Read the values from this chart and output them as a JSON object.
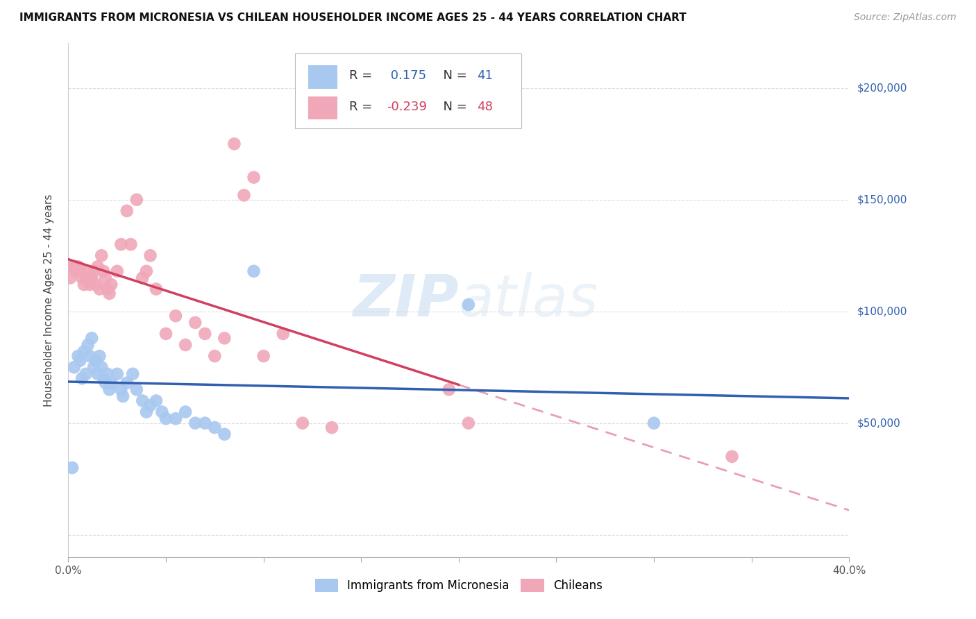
{
  "title": "IMMIGRANTS FROM MICRONESIA VS CHILEAN HOUSEHOLDER INCOME AGES 25 - 44 YEARS CORRELATION CHART",
  "source": "Source: ZipAtlas.com",
  "ylabel": "Householder Income Ages 25 - 44 years",
  "xlim": [
    0.0,
    0.4
  ],
  "ylim": [
    -10000,
    220000
  ],
  "ytick_vals": [
    0,
    50000,
    100000,
    150000,
    200000
  ],
  "ytick_labels": [
    "",
    "$50,000",
    "$100,000",
    "$150,000",
    "$200,000"
  ],
  "xtick_vals": [
    0.0,
    0.05,
    0.1,
    0.15,
    0.2,
    0.25,
    0.3,
    0.35,
    0.4
  ],
  "xtick_labels": [
    "0.0%",
    "",
    "",
    "",
    "",
    "",
    "",
    "",
    "40.0%"
  ],
  "blue_R": 0.175,
  "blue_N": 41,
  "pink_R": -0.239,
  "pink_N": 48,
  "blue_color": "#A8C8F0",
  "pink_color": "#F0A8B8",
  "blue_line_color": "#3060B0",
  "pink_line_color": "#D04060",
  "pink_dash_color": "#E8A0B0",
  "watermark_zip": "ZIP",
  "watermark_atlas": "atlas",
  "background_color": "#FFFFFF",
  "grid_color": "#DDDDDD",
  "blue_scatter_x": [
    0.002,
    0.003,
    0.005,
    0.006,
    0.007,
    0.008,
    0.009,
    0.01,
    0.011,
    0.012,
    0.013,
    0.014,
    0.015,
    0.016,
    0.017,
    0.018,
    0.019,
    0.02,
    0.021,
    0.022,
    0.025,
    0.027,
    0.028,
    0.03,
    0.033,
    0.035,
    0.038,
    0.04,
    0.042,
    0.045,
    0.048,
    0.05,
    0.055,
    0.06,
    0.065,
    0.07,
    0.075,
    0.08,
    0.095,
    0.205,
    0.3
  ],
  "blue_scatter_y": [
    30000,
    75000,
    80000,
    78000,
    70000,
    82000,
    72000,
    85000,
    80000,
    88000,
    75000,
    78000,
    72000,
    80000,
    75000,
    70000,
    68000,
    72000,
    65000,
    68000,
    72000,
    65000,
    62000,
    68000,
    72000,
    65000,
    60000,
    55000,
    58000,
    60000,
    55000,
    52000,
    52000,
    55000,
    50000,
    50000,
    48000,
    45000,
    118000,
    103000,
    50000
  ],
  "pink_scatter_x": [
    0.001,
    0.002,
    0.003,
    0.004,
    0.005,
    0.006,
    0.007,
    0.008,
    0.009,
    0.01,
    0.011,
    0.012,
    0.013,
    0.014,
    0.015,
    0.016,
    0.017,
    0.018,
    0.019,
    0.02,
    0.021,
    0.022,
    0.025,
    0.027,
    0.03,
    0.032,
    0.035,
    0.038,
    0.04,
    0.042,
    0.045,
    0.05,
    0.055,
    0.06,
    0.065,
    0.07,
    0.075,
    0.08,
    0.085,
    0.09,
    0.095,
    0.1,
    0.11,
    0.12,
    0.135,
    0.195,
    0.205,
    0.34
  ],
  "pink_scatter_y": [
    115000,
    120000,
    120000,
    118000,
    120000,
    118000,
    115000,
    112000,
    118000,
    115000,
    112000,
    115000,
    118000,
    112000,
    120000,
    110000,
    125000,
    118000,
    115000,
    110000,
    108000,
    112000,
    118000,
    130000,
    145000,
    130000,
    150000,
    115000,
    118000,
    125000,
    110000,
    90000,
    98000,
    85000,
    95000,
    90000,
    80000,
    88000,
    175000,
    152000,
    160000,
    80000,
    90000,
    50000,
    48000,
    65000,
    50000,
    35000
  ]
}
